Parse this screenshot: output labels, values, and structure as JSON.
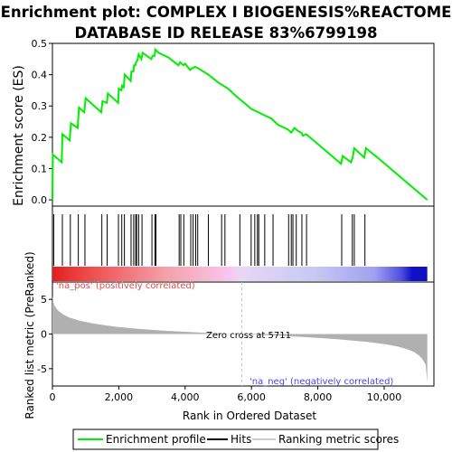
{
  "title_line1": "Enrichment plot: COMPLEX I BIOGENESIS%REACTOME",
  "title_line2": "DATABASE ID RELEASE 83%6799198",
  "colors": {
    "profile": "#00ee00",
    "hit": "#000000",
    "metric_fill": "#b0b0b0",
    "pos_text": "#ee4444",
    "neg_text": "#4444ee",
    "zero_line": "#c0c0c0"
  },
  "chart_data": [
    {
      "type": "line",
      "name": "enrichment-score-panel",
      "ylabel": "Enrichment score (ES)",
      "ylim": [
        -0.02,
        0.5
      ],
      "xlim": [
        0,
        11500
      ],
      "yticks": [
        "0.0",
        "0.1",
        "0.2",
        "0.3",
        "0.4",
        "0.5"
      ],
      "ytick_values": [
        0.0,
        0.1,
        0.2,
        0.3,
        0.4,
        0.5
      ],
      "grid": false,
      "series": [
        {
          "name": "Enrichment profile",
          "x": [
            0,
            10,
            280,
            300,
            520,
            560,
            760,
            800,
            960,
            1000,
            1470,
            1510,
            1640,
            1670,
            1980,
            2000,
            2080,
            2100,
            2150,
            2180,
            2360,
            2380,
            2440,
            2460,
            2500,
            2520,
            2560,
            2600,
            2680,
            2720,
            2980,
            3020,
            3080,
            3100,
            3200,
            3300,
            3500,
            3800,
            3850,
            3950,
            4000,
            4150,
            4200,
            4300,
            4400,
            4700,
            5000,
            5300,
            5500,
            6000,
            6300,
            6600,
            6800,
            7100,
            7200,
            7300,
            7400,
            7500,
            7550,
            7650,
            8700,
            8750,
            9000,
            9050,
            9100,
            9400,
            9450,
            9800,
            11300
          ],
          "y": [
            0.0,
            0.145,
            0.12,
            0.21,
            0.19,
            0.245,
            0.23,
            0.295,
            0.28,
            0.325,
            0.28,
            0.315,
            0.31,
            0.34,
            0.31,
            0.355,
            0.35,
            0.365,
            0.36,
            0.4,
            0.38,
            0.41,
            0.41,
            0.43,
            0.43,
            0.44,
            0.445,
            0.465,
            0.45,
            0.47,
            0.45,
            0.46,
            0.46,
            0.48,
            0.47,
            0.465,
            0.455,
            0.43,
            0.44,
            0.43,
            0.435,
            0.415,
            0.42,
            0.425,
            0.42,
            0.4,
            0.375,
            0.355,
            0.335,
            0.29,
            0.275,
            0.26,
            0.24,
            0.225,
            0.215,
            0.23,
            0.22,
            0.215,
            0.205,
            0.21,
            0.115,
            0.14,
            0.12,
            0.135,
            0.165,
            0.135,
            0.165,
            0.135,
            0.0
          ]
        }
      ]
    },
    {
      "type": "scatter",
      "name": "hits-panel",
      "xlim": [
        0,
        11500
      ],
      "hits": [
        40,
        300,
        540,
        780,
        980,
        1490,
        1650,
        1990,
        2090,
        2170,
        2370,
        2450,
        2510,
        2540,
        2600,
        2700,
        3000,
        3090,
        3120,
        3820,
        3870,
        3960,
        4170,
        4240,
        4320,
        4380,
        4700,
        5100,
        5200,
        5650,
        5990,
        6100,
        6180,
        6220,
        6400,
        6650,
        7120,
        7200,
        7250,
        7350,
        7520,
        7660,
        8720,
        9040,
        9100,
        9420
      ]
    },
    {
      "type": "area",
      "name": "ranked-metric-panel",
      "ylabel": "Ranked list metric (PreRanked)",
      "xlabel": "Rank in Ordered Dataset",
      "xlim": [
        0,
        11500
      ],
      "ylim": [
        -7.5,
        7.5
      ],
      "yticks": [
        "-5",
        "0",
        "5"
      ],
      "ytick_values": [
        -5,
        0,
        5
      ],
      "xticks": [
        "0",
        "2,000",
        "4,000",
        "6,000",
        "8,000",
        "10,000"
      ],
      "xtick_values": [
        0,
        2000,
        4000,
        6000,
        8000,
        10000
      ],
      "zero_cross": 5711,
      "zero_cross_label": "Zero cross at 5711",
      "pos_label": "'na_pos' (positively correlated)",
      "neg_label": "'na_neg' (negatively correlated)",
      "x": [
        0,
        50,
        150,
        300,
        500,
        800,
        1200,
        1600,
        2000,
        2500,
        3000,
        3500,
        4000,
        4500,
        5000,
        5400,
        5711,
        6000,
        6500,
        7000,
        7500,
        8000,
        8500,
        9000,
        9500,
        10000,
        10400,
        10700,
        10900,
        11050,
        11150,
        11250,
        11300
      ],
      "values": [
        5.5,
        4.2,
        3.5,
        2.9,
        2.4,
        1.95,
        1.55,
        1.25,
        1.0,
        0.78,
        0.6,
        0.45,
        0.32,
        0.2,
        0.1,
        0.03,
        0.0,
        -0.06,
        -0.16,
        -0.27,
        -0.4,
        -0.55,
        -0.72,
        -0.92,
        -1.15,
        -1.45,
        -1.8,
        -2.2,
        -2.6,
        -3.1,
        -3.6,
        -4.4,
        -6.9
      ]
    }
  ],
  "legend": {
    "items": [
      {
        "label": "Enrichment profile",
        "color": "#00ee00"
      },
      {
        "label": "Hits",
        "color": "#000000"
      },
      {
        "label": "Ranking metric scores",
        "color": "#cccccc"
      }
    ]
  }
}
